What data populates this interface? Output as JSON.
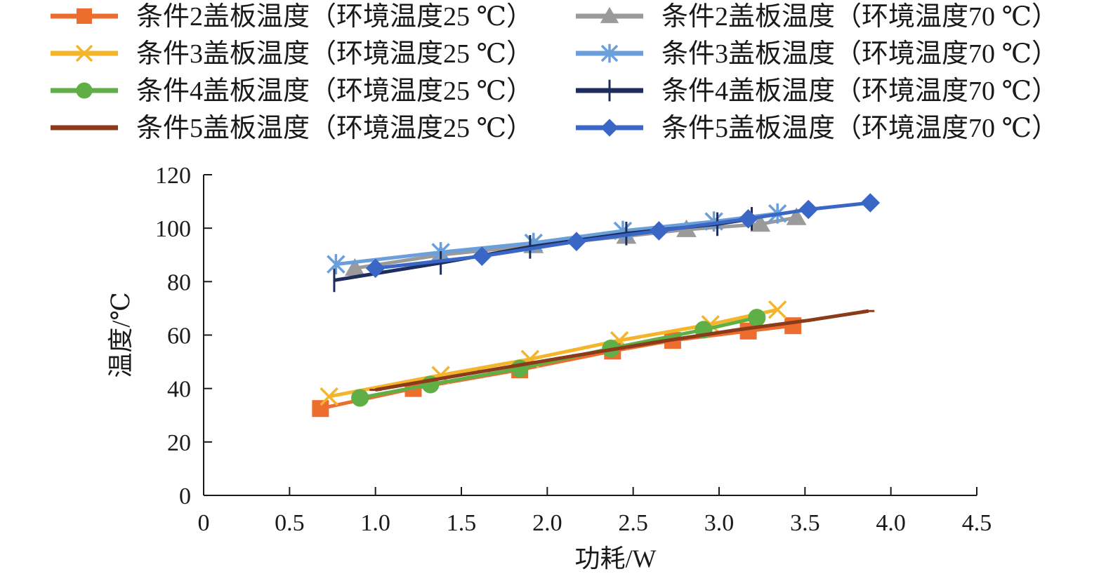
{
  "chart_data": {
    "type": "line",
    "title": "",
    "xlabel": "功耗/W",
    "ylabel": "温度/℃",
    "xlim": [
      0,
      4.5
    ],
    "ylim": [
      0,
      120
    ],
    "x_ticks": [
      "0",
      "0.5",
      "1.0",
      "1.5",
      "2.0",
      "2.5",
      "3.0",
      "3.5",
      "4.0",
      "4.5"
    ],
    "y_ticks": [
      "0",
      "20",
      "40",
      "60",
      "80",
      "100",
      "120"
    ],
    "grid": false,
    "legend_position": "top",
    "series": [
      {
        "name": "条件2盖板温度（环境温度25 ℃）",
        "color": "#ED6D2E",
        "marker": "square",
        "x": [
          0.68,
          1.22,
          1.84,
          2.38,
          2.73,
          3.17,
          3.43
        ],
        "y": [
          32.5,
          40,
          47,
          54,
          58,
          61.5,
          63.5
        ]
      },
      {
        "name": "条件3盖板温度（环境温度25 ℃）",
        "color": "#F4B52B",
        "marker": "x",
        "x": [
          0.73,
          1.38,
          1.9,
          2.42,
          2.95,
          3.34
        ],
        "y": [
          37,
          45,
          51,
          58,
          64,
          69.5
        ]
      },
      {
        "name": "条件4盖板温度（环境温度25 ℃）",
        "color": "#5FAE46",
        "marker": "circle",
        "x": [
          0.91,
          1.32,
          1.84,
          2.37,
          2.91,
          3.22
        ],
        "y": [
          36.5,
          41.5,
          47.5,
          55,
          62,
          66.5
        ]
      },
      {
        "name": "条件5盖板温度（环境温度25 ℃）",
        "color": "#8B3A1A",
        "marker": "dash",
        "x": [
          1.0,
          1.63,
          2.18,
          2.65,
          3.11,
          3.52,
          3.87
        ],
        "y": [
          39.5,
          46.5,
          52.5,
          57.5,
          62,
          65.5,
          69
        ]
      },
      {
        "name": "条件2盖板温度（环境温度70 ℃）",
        "color": "#9A9A9A",
        "marker": "triangle",
        "x": [
          0.88,
          1.38,
          1.92,
          2.46,
          2.81,
          3.24,
          3.45
        ],
        "y": [
          85,
          90,
          93.5,
          97,
          99.5,
          101.5,
          104
        ]
      },
      {
        "name": "条件3盖板温度（环境温度70 ℃）",
        "color": "#6A9FDB",
        "marker": "asterisk",
        "x": [
          0.77,
          1.38,
          1.92,
          2.44,
          2.97,
          3.34
        ],
        "y": [
          86.5,
          91,
          94.5,
          99,
          102.5,
          105.5
        ]
      },
      {
        "name": "条件4盖板温度（环境温度70 ℃）",
        "color": "#1F2D5E",
        "marker": "plus",
        "x": [
          0.76,
          1.38,
          1.9,
          2.46,
          2.99,
          3.19
        ],
        "y": [
          80.5,
          87,
          93,
          98,
          101.5,
          103.5
        ]
      },
      {
        "name": "条件5盖板温度（环境温度70 ℃）",
        "color": "#3A66C6",
        "marker": "diamond",
        "x": [
          1.0,
          1.62,
          2.17,
          2.65,
          3.17,
          3.52,
          3.88
        ],
        "y": [
          85,
          89.5,
          95,
          99,
          103.5,
          107,
          109.5
        ]
      }
    ]
  }
}
